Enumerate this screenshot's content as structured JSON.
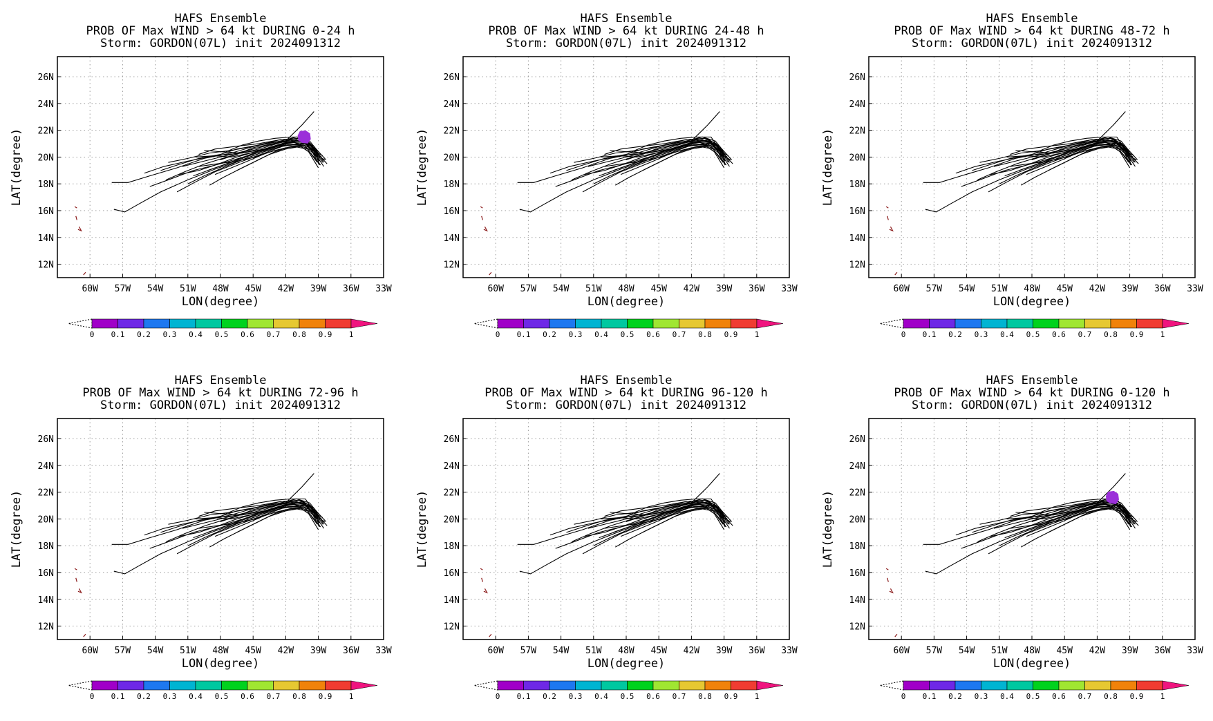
{
  "chart_data": [
    {
      "type": "line",
      "title_lines": [
        "HAFS Ensemble",
        "PROB OF Max WIND > 64 kt DURING  0-24 h",
        "Storm: GORDON(07L) init 2024091312"
      ],
      "xlabel": "LON(degree)",
      "ylabel": "LAT(degree)",
      "x_ticks": [
        "60W",
        "57W",
        "54W",
        "51W",
        "48W",
        "45W",
        "42W",
        "39W",
        "36W",
        "33W"
      ],
      "y_ticks": [
        "12N",
        "14N",
        "16N",
        "18N",
        "20N",
        "22N",
        "24N",
        "26N"
      ],
      "xlim": [
        -63.0,
        -33.0
      ],
      "ylim": [
        11.0,
        27.5
      ],
      "grid": true,
      "probability_area": {
        "lon": -40.3,
        "lat": 21.5,
        "class": "0.1"
      },
      "colorbar": {
        "ticks": [
          "0",
          "0.1",
          "0.2",
          "0.3",
          "0.4",
          "0.5",
          "0.6",
          "0.7",
          "0.8",
          "0.9",
          "1"
        ]
      }
    },
    {
      "type": "line",
      "title_lines": [
        "HAFS Ensemble",
        "PROB OF Max WIND > 64 kt DURING 24-48 h",
        "Storm: GORDON(07L) init 2024091312"
      ],
      "xlabel": "LON(degree)",
      "ylabel": "LAT(degree)",
      "x_ticks": [
        "60W",
        "57W",
        "54W",
        "51W",
        "48W",
        "45W",
        "42W",
        "39W",
        "36W",
        "33W"
      ],
      "y_ticks": [
        "12N",
        "14N",
        "16N",
        "18N",
        "20N",
        "22N",
        "24N",
        "26N"
      ],
      "xlim": [
        -63.0,
        -33.0
      ],
      "ylim": [
        11.0,
        27.5
      ],
      "grid": true,
      "probability_area": null,
      "colorbar": {
        "ticks": [
          "0",
          "0.1",
          "0.2",
          "0.3",
          "0.4",
          "0.5",
          "0.6",
          "0.7",
          "0.8",
          "0.9",
          "1"
        ]
      }
    },
    {
      "type": "line",
      "title_lines": [
        "HAFS Ensemble",
        "PROB OF Max WIND > 64 kt DURING 48-72 h",
        "Storm: GORDON(07L) init 2024091312"
      ],
      "xlabel": "LON(degree)",
      "ylabel": "LAT(degree)",
      "x_ticks": [
        "60W",
        "57W",
        "54W",
        "51W",
        "48W",
        "45W",
        "42W",
        "39W",
        "36W",
        "33W"
      ],
      "y_ticks": [
        "12N",
        "14N",
        "16N",
        "18N",
        "20N",
        "22N",
        "24N",
        "26N"
      ],
      "xlim": [
        -63.0,
        -33.0
      ],
      "ylim": [
        11.0,
        27.5
      ],
      "grid": true,
      "probability_area": null,
      "colorbar": {
        "ticks": [
          "0",
          "0.1",
          "0.2",
          "0.3",
          "0.4",
          "0.5",
          "0.6",
          "0.7",
          "0.8",
          "0.9",
          "1"
        ]
      }
    },
    {
      "type": "line",
      "title_lines": [
        "HAFS Ensemble",
        "PROB OF Max WIND > 64 kt DURING 72-96 h",
        "Storm: GORDON(07L) init 2024091312"
      ],
      "xlabel": "LON(degree)",
      "ylabel": "LAT(degree)",
      "x_ticks": [
        "60W",
        "57W",
        "54W",
        "51W",
        "48W",
        "45W",
        "42W",
        "39W",
        "36W",
        "33W"
      ],
      "y_ticks": [
        "12N",
        "14N",
        "16N",
        "18N",
        "20N",
        "22N",
        "24N",
        "26N"
      ],
      "xlim": [
        -63.0,
        -33.0
      ],
      "ylim": [
        11.0,
        27.5
      ],
      "grid": true,
      "probability_area": null,
      "colorbar": {
        "ticks": [
          "0",
          "0.1",
          "0.2",
          "0.3",
          "0.4",
          "0.5",
          "0.6",
          "0.7",
          "0.8",
          "0.9",
          "1"
        ]
      }
    },
    {
      "type": "line",
      "title_lines": [
        "HAFS Ensemble",
        "PROB OF Max WIND > 64 kt DURING 96-120 h",
        "Storm: GORDON(07L) init 2024091312"
      ],
      "xlabel": "LON(degree)",
      "ylabel": "LAT(degree)",
      "x_ticks": [
        "60W",
        "57W",
        "54W",
        "51W",
        "48W",
        "45W",
        "42W",
        "39W",
        "36W",
        "33W"
      ],
      "y_ticks": [
        "12N",
        "14N",
        "16N",
        "18N",
        "20N",
        "22N",
        "24N",
        "26N"
      ],
      "xlim": [
        -63.0,
        -33.0
      ],
      "ylim": [
        11.0,
        27.5
      ],
      "grid": true,
      "probability_area": null,
      "colorbar": {
        "ticks": [
          "0",
          "0.1",
          "0.2",
          "0.3",
          "0.4",
          "0.5",
          "0.6",
          "0.7",
          "0.8",
          "0.9",
          "1"
        ]
      }
    },
    {
      "type": "line",
      "title_lines": [
        "HAFS Ensemble",
        "PROB OF Max WIND > 64 kt DURING 0-120 h",
        "Storm: GORDON(07L) init 2024091312"
      ],
      "xlabel": "LON(degree)",
      "ylabel": "LAT(degree)",
      "x_ticks": [
        "60W",
        "57W",
        "54W",
        "51W",
        "48W",
        "45W",
        "42W",
        "39W",
        "36W",
        "33W"
      ],
      "y_ticks": [
        "12N",
        "14N",
        "16N",
        "18N",
        "20N",
        "22N",
        "24N",
        "26N"
      ],
      "xlim": [
        -63.0,
        -33.0
      ],
      "ylim": [
        11.0,
        27.5
      ],
      "grid": true,
      "probability_area": {
        "lon": -40.6,
        "lat": 21.6,
        "class": "0.1"
      },
      "colorbar": {
        "ticks": [
          "0",
          "0.1",
          "0.2",
          "0.3",
          "0.4",
          "0.5",
          "0.6",
          "0.7",
          "0.8",
          "0.9",
          "1"
        ]
      }
    }
  ],
  "ensemble_tracks": {
    "note_units": "lon (degrees east, negative = W), lat (degrees N)",
    "members": [
      [
        [
          -58.0,
          18.1
        ],
        [
          -56.5,
          18.1
        ],
        [
          -54.5,
          18.6
        ],
        [
          -52.0,
          19.2
        ],
        [
          -49.5,
          19.9
        ],
        [
          -47.0,
          20.3
        ],
        [
          -44.5,
          20.9
        ],
        [
          -42.5,
          21.2
        ],
        [
          -40.5,
          21.2
        ],
        [
          -39.2,
          20.6
        ],
        [
          -38.3,
          19.8
        ]
      ],
      [
        [
          -57.8,
          16.1
        ],
        [
          -56.8,
          15.9
        ],
        [
          -55.5,
          16.5
        ],
        [
          -53.5,
          17.4
        ],
        [
          -51.0,
          18.3
        ],
        [
          -48.5,
          19.1
        ],
        [
          -46.0,
          19.8
        ],
        [
          -44.0,
          20.4
        ],
        [
          -42.0,
          20.9
        ],
        [
          -40.0,
          20.9
        ],
        [
          -39.0,
          20.2
        ],
        [
          -38.2,
          19.5
        ]
      ],
      [
        [
          -55.0,
          18.8
        ],
        [
          -53.2,
          19.3
        ],
        [
          -51.0,
          19.7
        ],
        [
          -48.5,
          20.1
        ],
        [
          -46.0,
          20.3
        ],
        [
          -44.0,
          20.7
        ],
        [
          -42.0,
          21.2
        ],
        [
          -40.5,
          22.4
        ],
        [
          -39.4,
          23.4
        ]
      ],
      [
        [
          -54.5,
          17.8
        ],
        [
          -52.8,
          18.3
        ],
        [
          -50.5,
          19.0
        ],
        [
          -48.0,
          19.5
        ],
        [
          -45.5,
          20.1
        ],
        [
          -43.5,
          20.6
        ],
        [
          -41.5,
          21.1
        ],
        [
          -39.8,
          21.0
        ],
        [
          -38.8,
          20.0
        ]
      ],
      [
        [
          -53.0,
          18.3
        ],
        [
          -51.3,
          18.9
        ],
        [
          -49.4,
          19.5
        ],
        [
          -47.4,
          20.0
        ],
        [
          -45.0,
          20.6
        ],
        [
          -43.0,
          21.0
        ],
        [
          -41.0,
          21.3
        ],
        [
          -39.6,
          20.8
        ],
        [
          -38.6,
          19.6
        ]
      ],
      [
        [
          -52.0,
          17.4
        ],
        [
          -50.4,
          18.1
        ],
        [
          -48.5,
          18.9
        ],
        [
          -46.3,
          19.6
        ],
        [
          -44.3,
          20.2
        ],
        [
          -42.3,
          20.8
        ],
        [
          -40.5,
          21.0
        ],
        [
          -39.5,
          20.3
        ],
        [
          -38.9,
          19.4
        ]
      ],
      [
        [
          -51.5,
          19.3
        ],
        [
          -49.5,
          19.7
        ],
        [
          -47.5,
          20.1
        ],
        [
          -45.5,
          20.5
        ],
        [
          -43.5,
          20.9
        ],
        [
          -41.5,
          21.3
        ],
        [
          -40.0,
          21.1
        ],
        [
          -39.0,
          20.1
        ]
      ],
      [
        [
          -50.5,
          18.6
        ],
        [
          -48.8,
          19.1
        ],
        [
          -47.0,
          19.6
        ],
        [
          -45.0,
          20.2
        ],
        [
          -43.0,
          20.8
        ],
        [
          -41.2,
          21.1
        ],
        [
          -39.8,
          20.7
        ],
        [
          -38.9,
          19.7
        ]
      ],
      [
        [
          -50.0,
          20.2
        ],
        [
          -48.5,
          20.6
        ],
        [
          -46.6,
          20.8
        ],
        [
          -44.5,
          21.0
        ],
        [
          -42.5,
          21.3
        ],
        [
          -40.6,
          21.4
        ],
        [
          -39.6,
          20.9
        ],
        [
          -38.7,
          19.9
        ]
      ],
      [
        [
          -49.5,
          20.5
        ],
        [
          -48.0,
          20.4
        ],
        [
          -46.0,
          20.3
        ],
        [
          -44.0,
          20.6
        ],
        [
          -42.0,
          21.1
        ],
        [
          -40.4,
          21.2
        ],
        [
          -39.4,
          20.4
        ],
        [
          -38.5,
          19.3
        ]
      ],
      [
        [
          -52.8,
          19.6
        ],
        [
          -51.0,
          19.9
        ],
        [
          -49.0,
          20.3
        ],
        [
          -47.0,
          20.5
        ],
        [
          -45.0,
          20.8
        ],
        [
          -43.0,
          21.1
        ],
        [
          -41.0,
          21.5
        ],
        [
          -39.8,
          21.2
        ],
        [
          -39.0,
          20.4
        ]
      ],
      [
        [
          -51.0,
          18.0
        ],
        [
          -49.5,
          18.6
        ],
        [
          -47.8,
          19.2
        ],
        [
          -46.0,
          19.8
        ],
        [
          -44.0,
          20.4
        ],
        [
          -42.0,
          20.9
        ],
        [
          -40.2,
          21.0
        ],
        [
          -39.3,
          20.2
        ],
        [
          -38.4,
          19.8
        ]
      ],
      [
        [
          -48.5,
          18.7
        ],
        [
          -47.0,
          19.2
        ],
        [
          -45.5,
          19.7
        ],
        [
          -43.8,
          20.3
        ],
        [
          -42.0,
          20.7
        ],
        [
          -40.5,
          20.8
        ],
        [
          -39.5,
          20.5
        ],
        [
          -38.7,
          20.0
        ]
      ],
      [
        [
          -47.5,
          20.4
        ],
        [
          -46.0,
          20.9
        ],
        [
          -44.5,
          21.2
        ],
        [
          -43.0,
          21.4
        ],
        [
          -41.5,
          21.5
        ],
        [
          -40.2,
          21.5
        ],
        [
          -39.5,
          20.7
        ],
        [
          -38.9,
          19.8
        ]
      ],
      [
        [
          -50.0,
          19.3
        ],
        [
          -48.3,
          19.5
        ],
        [
          -46.5,
          19.7
        ],
        [
          -44.8,
          20.0
        ],
        [
          -43.0,
          20.5
        ],
        [
          -41.3,
          20.8
        ],
        [
          -40.0,
          20.6
        ],
        [
          -39.1,
          19.6
        ]
      ],
      [
        [
          -53.5,
          19.0
        ],
        [
          -52.0,
          19.4
        ],
        [
          -50.0,
          19.9
        ],
        [
          -48.0,
          20.2
        ],
        [
          -46.5,
          20.6
        ],
        [
          -44.5,
          20.9
        ],
        [
          -42.5,
          21.3
        ],
        [
          -40.8,
          21.4
        ],
        [
          -39.7,
          21.0
        ],
        [
          -38.9,
          19.5
        ]
      ],
      [
        [
          -49.0,
          17.9
        ],
        [
          -47.7,
          18.5
        ],
        [
          -46.0,
          19.2
        ],
        [
          -44.5,
          19.8
        ],
        [
          -43.0,
          20.4
        ],
        [
          -41.5,
          20.8
        ],
        [
          -40.0,
          20.9
        ],
        [
          -39.2,
          20.0
        ]
      ],
      [
        [
          -51.8,
          18.7
        ],
        [
          -50.0,
          19.0
        ],
        [
          -48.5,
          19.4
        ],
        [
          -46.5,
          20.0
        ],
        [
          -44.8,
          20.4
        ],
        [
          -42.8,
          20.8
        ],
        [
          -41.0,
          21.0
        ],
        [
          -39.9,
          20.4
        ],
        [
          -39.0,
          19.2
        ]
      ],
      [
        [
          -48.0,
          19.8
        ],
        [
          -46.5,
          20.2
        ],
        [
          -45.0,
          20.7
        ],
        [
          -43.2,
          21.0
        ],
        [
          -41.6,
          21.3
        ],
        [
          -40.3,
          21.2
        ],
        [
          -39.5,
          20.5
        ],
        [
          -38.6,
          20.1
        ]
      ],
      [
        [
          -46.5,
          19.0
        ],
        [
          -45.0,
          19.6
        ],
        [
          -43.5,
          20.2
        ],
        [
          -42.0,
          20.6
        ],
        [
          -40.6,
          20.8
        ],
        [
          -39.7,
          20.3
        ],
        [
          -38.8,
          19.4
        ]
      ],
      [
        [
          -50.3,
          20.0
        ],
        [
          -48.6,
          20.1
        ],
        [
          -47.0,
          20.0
        ],
        [
          -45.3,
          20.3
        ],
        [
          -43.5,
          20.7
        ],
        [
          -41.8,
          21.1
        ],
        [
          -40.4,
          21.3
        ],
        [
          -39.4,
          20.8
        ],
        [
          -38.5,
          19.6
        ]
      ],
      [
        [
          -49.2,
          19.0
        ],
        [
          -47.8,
          19.4
        ],
        [
          -46.2,
          19.9
        ],
        [
          -44.6,
          20.4
        ],
        [
          -42.7,
          20.9
        ],
        [
          -41.0,
          21.2
        ],
        [
          -39.9,
          21.0
        ],
        [
          -39.0,
          20.3
        ]
      ]
    ],
    "island_coast_dashes": [
      [
        [
          -61.4,
          16.3
        ],
        [
          -61.2,
          16.2
        ]
      ],
      [
        [
          -61.3,
          15.6
        ],
        [
          -61.2,
          15.3
        ]
      ],
      [
        [
          -61.0,
          14.8
        ],
        [
          -60.8,
          14.5
        ],
        [
          -61.1,
          14.6
        ]
      ],
      [
        [
          -60.6,
          11.2
        ],
        [
          -60.4,
          11.4
        ]
      ]
    ]
  },
  "colors": {
    "tracks": "#000000",
    "islands": "#8b1a1a",
    "grid": "#9a9a9a",
    "prob_area": "#9b30d9",
    "colorbar_bins": [
      "#a000c8",
      "#6e28e6",
      "#1e78f0",
      "#00b4d2",
      "#00c8a0",
      "#00d21e",
      "#a0e632",
      "#e6c832",
      "#f0820a",
      "#f03c32",
      "#f0147f"
    ]
  }
}
